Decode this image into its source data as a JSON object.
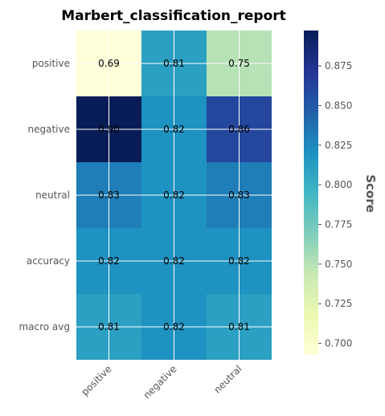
{
  "chart_data": {
    "type": "heatmap",
    "title": "Marbert_classification_report",
    "x_categories": [
      "positive",
      "negative",
      "neutral"
    ],
    "y_categories": [
      "positive",
      "negative",
      "neutral",
      "accuracy",
      "macro avg"
    ],
    "values": [
      [
        0.69,
        0.81,
        0.75
      ],
      [
        0.9,
        0.82,
        0.86
      ],
      [
        0.83,
        0.82,
        0.83
      ],
      [
        0.82,
        0.82,
        0.82
      ],
      [
        0.81,
        0.82,
        0.81
      ]
    ],
    "value_labels": [
      [
        "0.69",
        "0.81",
        "0.75"
      ],
      [
        "0.90",
        "0.82",
        "0.86"
      ],
      [
        "0.83",
        "0.82",
        "0.83"
      ],
      [
        "0.82",
        "0.82",
        "0.82"
      ],
      [
        "0.81",
        "0.82",
        "0.81"
      ]
    ],
    "colormap": "YlGnBu",
    "colorbar": {
      "label": "Score",
      "range": [
        0.6927,
        0.8973
      ],
      "ticks": [
        0.7,
        0.725,
        0.75,
        0.775,
        0.8,
        0.825,
        0.85,
        0.875
      ],
      "tick_labels": [
        "0.700",
        "0.725",
        "0.750",
        "0.775",
        "0.800",
        "0.825",
        "0.850",
        "0.875"
      ]
    },
    "grid": true
  }
}
